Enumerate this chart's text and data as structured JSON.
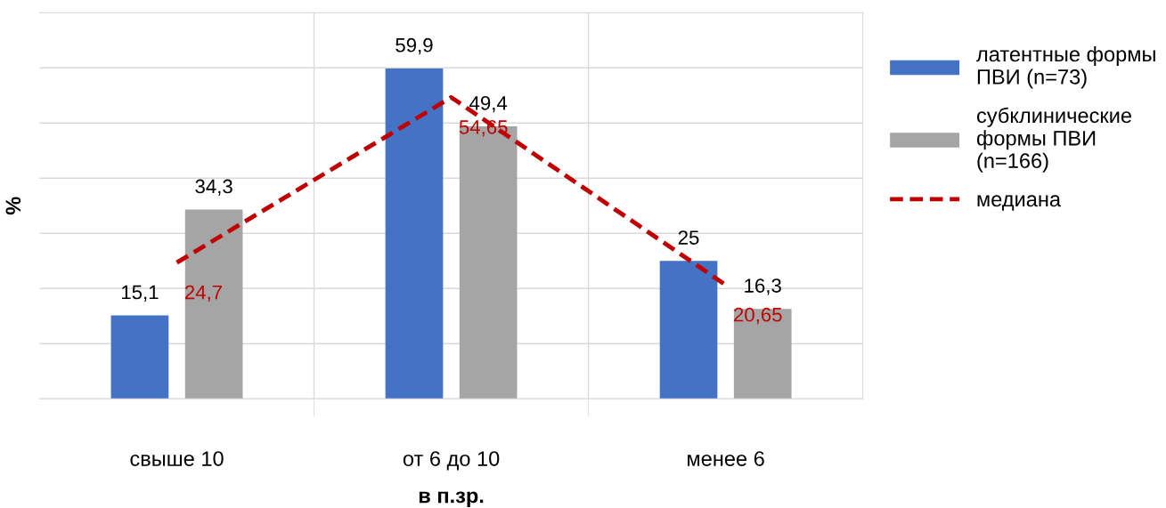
{
  "chart_data": {
    "type": "bar",
    "xlabel": "в п.зр.",
    "ylabel": "%",
    "categories": [
      "свыше 10",
      "от 6 до 10",
      "менее 6"
    ],
    "series": [
      {
        "name": "латентные формы\nПВИ (n=73)",
        "color": "#4472c4",
        "values": [
          15.1,
          59.9,
          25
        ],
        "value_labels": [
          "15,1",
          "59,9",
          "25"
        ]
      },
      {
        "name": "субклинические\nформы ПВИ\n(n=166)",
        "color": "#a5a5a5",
        "values": [
          34.3,
          49.4,
          16.3
        ],
        "value_labels": [
          "34,3",
          "49,4",
          "16,3"
        ]
      },
      {
        "name": "медиана",
        "type": "line",
        "color": "#c00000",
        "line_style": "dashed",
        "marker": "none",
        "values": [
          24.7,
          54.65,
          20.65
        ],
        "value_labels": [
          "24,7",
          "54,65",
          "20,65"
        ]
      }
    ],
    "ylim": [
      0,
      70
    ],
    "yticks": [
      {
        "value": 0,
        "label": null
      },
      {
        "value": 10,
        "label": null
      },
      {
        "value": 20,
        "label": null
      },
      {
        "value": 30,
        "label": null
      },
      {
        "value": 40,
        "label": null
      },
      {
        "value": 50,
        "label": null
      },
      {
        "value": 60,
        "label": null
      },
      {
        "value": 70,
        "label": null
      }
    ],
    "tick_labels": "x",
    "grid": true,
    "legend": "right"
  }
}
